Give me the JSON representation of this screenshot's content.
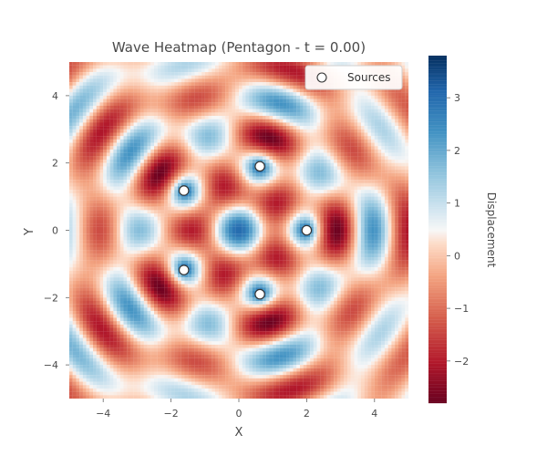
{
  "chart_data": {
    "type": "heatmap",
    "title": "Wave Heatmap (Pentagon - t = 0.00)",
    "xlabel": "X",
    "ylabel": "Y",
    "xlim": [
      -5,
      5
    ],
    "ylim": [
      -5,
      5
    ],
    "xticks": [
      {
        "value": -4,
        "label": "−4"
      },
      {
        "value": -2,
        "label": "−2"
      },
      {
        "value": 0,
        "label": "0"
      },
      {
        "value": 2,
        "label": "2"
      },
      {
        "value": 4,
        "label": "4"
      }
    ],
    "yticks": [
      {
        "value": -4,
        "label": "−4"
      },
      {
        "value": -2,
        "label": "−2"
      },
      {
        "value": 0,
        "label": "0"
      },
      {
        "value": 2,
        "label": "2"
      },
      {
        "value": 4,
        "label": "4"
      }
    ],
    "colorbar": {
      "label": "Displacement",
      "range": [
        -2.8,
        3.8
      ],
      "colormap": "RdBu",
      "ticks": [
        {
          "value": -2,
          "label": "−2"
        },
        {
          "value": -1,
          "label": "−1"
        },
        {
          "value": 0,
          "label": "0"
        },
        {
          "value": 1,
          "label": "1"
        },
        {
          "value": 2,
          "label": "2"
        },
        {
          "value": 3,
          "label": "3"
        }
      ]
    },
    "sources": {
      "name": "Sources",
      "points": [
        {
          "x": 2.0,
          "y": 0.0
        },
        {
          "x": 0.62,
          "y": 1.9
        },
        {
          "x": -1.62,
          "y": 1.18
        },
        {
          "x": -1.62,
          "y": -1.18
        },
        {
          "x": 0.62,
          "y": -1.9
        }
      ]
    },
    "wave": {
      "wavenumber": 3.2
    },
    "grid": false,
    "legend_position": "top-right"
  }
}
